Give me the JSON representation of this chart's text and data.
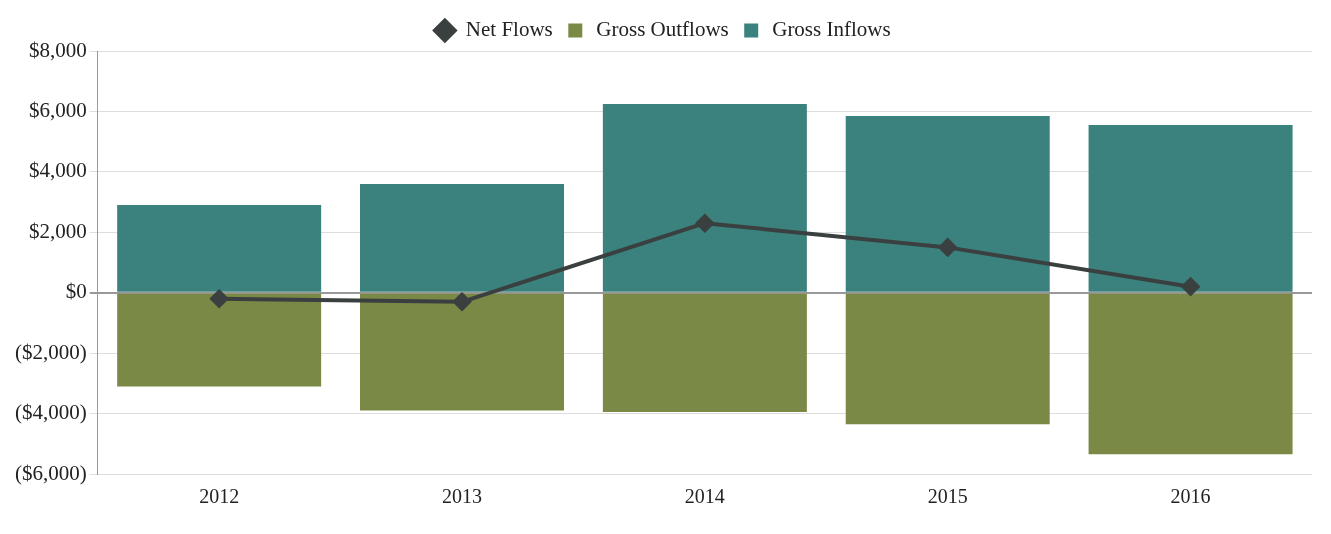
{
  "chart_data": {
    "type": "bar",
    "stacked": true,
    "categories": [
      "2012",
      "2013",
      "2014",
      "2015",
      "2016"
    ],
    "series": [
      {
        "name": "Gross Outflows",
        "color": "#7a8945",
        "values": [
          -3100,
          -3900,
          -3950,
          -4350,
          -5350
        ]
      },
      {
        "name": "Gross Inflows",
        "color": "#3b817e",
        "values": [
          2900,
          3600,
          6250,
          5850,
          5550
        ]
      },
      {
        "name": "Net Flows",
        "type": "line",
        "color": "#3a403f",
        "marker": "diamond",
        "values": [
          -200,
          -300,
          2300,
          1500,
          200
        ]
      }
    ],
    "ylim": [
      -6000,
      8000
    ],
    "yticks": [
      {
        "value": -6000,
        "label": "($6,000)"
      },
      {
        "value": -4000,
        "label": "($4,000)"
      },
      {
        "value": -2000,
        "label": "($2,000)"
      },
      {
        "value": 0,
        "label": "$0"
      },
      {
        "value": 2000,
        "label": "$2,000"
      },
      {
        "value": 4000,
        "label": "$4,000"
      },
      {
        "value": 6000,
        "label": "$6,000"
      },
      {
        "value": 8000,
        "label": "$8,000"
      }
    ],
    "grid": "y",
    "legend": "top"
  }
}
